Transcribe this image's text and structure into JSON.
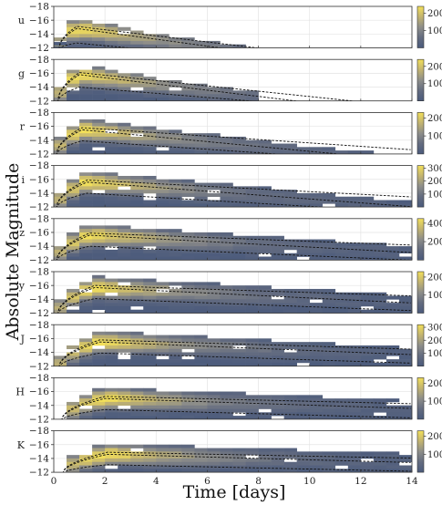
{
  "chart_data": {
    "type": "heatmap",
    "xlabel": "Time [days]",
    "ylabel": "Absolute Magnitude",
    "x_ticks": [
      0,
      2,
      4,
      6,
      8,
      10,
      12,
      14
    ],
    "xlim": [
      0,
      14
    ],
    "ylim": [
      -12,
      -18
    ],
    "y_ticks": [
      -18,
      -16,
      -14,
      -12
    ],
    "colormap": "cividis",
    "colors": {
      "low": "#4a5a7c",
      "mid": "#8e8e8a",
      "high": "#f2df5a",
      "curve": "#111111"
    },
    "panels": [
      {
        "band": "u",
        "colorbar_ticks": [
          100,
          200
        ],
        "vmax": 240,
        "peak_time": 0.9,
        "peak_mag": -14.8,
        "rise_start": 0.2,
        "center_fade": 0.5,
        "lower_fade": 0.35,
        "upper_fade": 0.8,
        "upper_offset": 2.0,
        "max_time": 14,
        "extra_faint": [
          -12.0,
          -12.6
        ]
      },
      {
        "band": "g",
        "colorbar_ticks": [
          100,
          200
        ],
        "vmax": 240,
        "peak_time": 1.0,
        "peak_mag": -15.8,
        "rise_start": 0.15,
        "center_fade": 0.45,
        "lower_fade": 0.3,
        "upper_fade": 0.7,
        "upper_offset": 1.7,
        "max_time": 8,
        "extra_faint": []
      },
      {
        "band": "r",
        "colorbar_ticks": [
          100,
          200
        ],
        "vmax": 230,
        "peak_time": 1.1,
        "peak_mag": -15.5,
        "rise_start": 0.1,
        "center_fade": 0.35,
        "lower_fade": 0.25,
        "upper_fade": 0.45,
        "upper_offset": 1.5,
        "max_time": 14,
        "extra_faint": []
      },
      {
        "band": "i",
        "colorbar_ticks": [
          100,
          200,
          300
        ],
        "vmax": 320,
        "peak_time": 1.3,
        "peak_mag": -15.6,
        "rise_start": 0.1,
        "center_fade": 0.28,
        "lower_fade": 0.22,
        "upper_fade": 0.35,
        "upper_offset": 1.5,
        "max_time": 14,
        "extra_faint": []
      },
      {
        "band": "z",
        "colorbar_ticks": [
          200,
          400
        ],
        "vmax": 450,
        "peak_time": 1.4,
        "peak_mag": -15.6,
        "rise_start": 0.1,
        "center_fade": 0.2,
        "lower_fade": 0.16,
        "upper_fade": 0.25,
        "upper_offset": 1.5,
        "max_time": 14,
        "extra_faint": []
      },
      {
        "band": "y",
        "colorbar_ticks": [
          100,
          200
        ],
        "vmax": 230,
        "peak_time": 1.6,
        "peak_mag": -15.7,
        "rise_start": 0.15,
        "center_fade": 0.18,
        "lower_fade": 0.14,
        "upper_fade": 0.22,
        "upper_offset": 1.5,
        "max_time": 14,
        "extra_faint": []
      },
      {
        "band": "J",
        "colorbar_ticks": [
          100,
          200,
          300
        ],
        "vmax": 320,
        "peak_time": 1.8,
        "peak_mag": -15.5,
        "rise_start": 0.2,
        "center_fade": 0.15,
        "lower_fade": 0.12,
        "upper_fade": 0.2,
        "upper_offset": 1.5,
        "max_time": 14,
        "extra_faint": []
      },
      {
        "band": "H",
        "colorbar_ticks": [
          100,
          200
        ],
        "vmax": 230,
        "peak_time": 2.0,
        "peak_mag": -15.0,
        "rise_start": 0.3,
        "center_fade": 0.12,
        "lower_fade": 0.1,
        "upper_fade": 0.16,
        "upper_offset": 1.5,
        "max_time": 14,
        "extra_faint": []
      },
      {
        "band": "K",
        "colorbar_ticks": [
          100,
          200
        ],
        "vmax": 230,
        "peak_time": 2.1,
        "peak_mag": -14.6,
        "rise_start": 0.35,
        "center_fade": 0.1,
        "lower_fade": 0.08,
        "upper_fade": 0.13,
        "upper_offset": 1.4,
        "max_time": 14,
        "extra_faint": []
      }
    ]
  }
}
